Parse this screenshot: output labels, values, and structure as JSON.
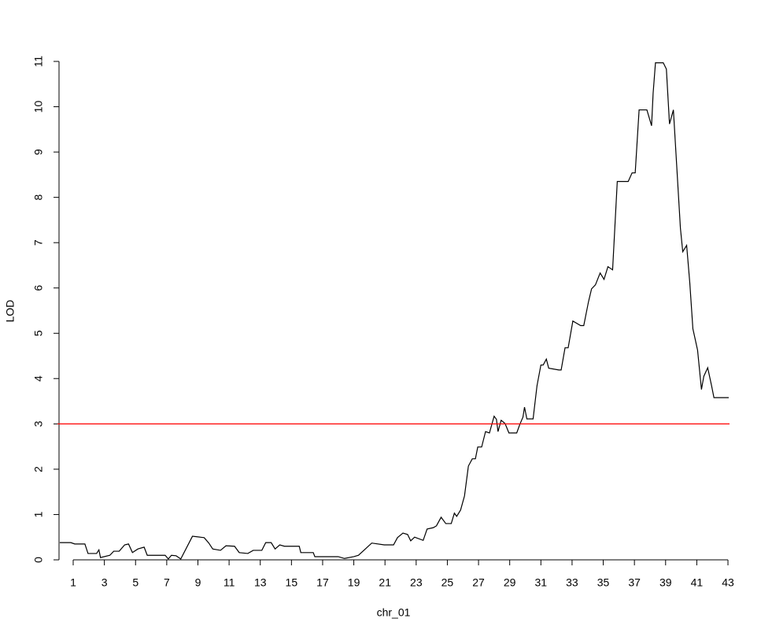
{
  "chart_data": {
    "type": "line",
    "x_label": "chr_01",
    "y_label": "LOD",
    "color": "#000000",
    "threshold": 3,
    "threshold_color": "#ff0000",
    "xlim": [
      0,
      43.1
    ],
    "ylim": [
      0,
      11
    ],
    "xticks": [
      1,
      3,
      5,
      7,
      9,
      11,
      13,
      15,
      17,
      19,
      21,
      23,
      25,
      27,
      29,
      31,
      33,
      35,
      37,
      39,
      41,
      43
    ],
    "yticks": [
      0,
      1,
      2,
      3,
      4,
      5,
      6,
      7,
      8,
      9,
      10,
      11
    ],
    "x": [
      0.14,
      0.85,
      1.1,
      1.75,
      1.95,
      2.5,
      2.65,
      2.75,
      3.35,
      3.6,
      3.95,
      4.3,
      4.55,
      4.8,
      5.15,
      5.55,
      5.75,
      6.4,
      6.9,
      7.1,
      7.3,
      7.6,
      7.9,
      8.65,
      9.4,
      9.7,
      9.95,
      10.45,
      10.8,
      11.35,
      11.65,
      12.2,
      12.55,
      13.1,
      13.35,
      13.7,
      13.95,
      14.25,
      14.55,
      15.5,
      15.6,
      16.4,
      16.5,
      18,
      18.4,
      19,
      19.3,
      20.15,
      20.95,
      21.55,
      21.8,
      22.15,
      22.45,
      22.65,
      22.9,
      23.45,
      23.7,
      24.1,
      24.3,
      24.6,
      24.9,
      25.25,
      25.45,
      25.6,
      25.85,
      26.1,
      26.35,
      26.6,
      26.8,
      26.95,
      27.2,
      27.45,
      27.7,
      28,
      28.15,
      28.25,
      28.45,
      28.7,
      28.95,
      29.45,
      29.65,
      29.85,
      29.95,
      30.1,
      30.5,
      30.75,
      31,
      31.15,
      31.35,
      31.5,
      32.15,
      32.3,
      32.55,
      32.75,
      33.05,
      33.55,
      33.75,
      34.05,
      34.25,
      34.5,
      34.8,
      35.05,
      35.3,
      35.6,
      35.9,
      36.6,
      36.85,
      37.05,
      37.3,
      37.8,
      38.1,
      38.2,
      38.35,
      38.85,
      39.05,
      39.25,
      39.5,
      39.95,
      40.1,
      40.35,
      40.55,
      40.75,
      41.05,
      41.3,
      41.45,
      41.7,
      41.95,
      42.1,
      43.05
    ],
    "values": [
      0.38,
      0.38,
      0.35,
      0.35,
      0.14,
      0.14,
      0.22,
      0.05,
      0.1,
      0.19,
      0.19,
      0.33,
      0.35,
      0.16,
      0.24,
      0.28,
      0.1,
      0.1,
      0.1,
      0.02,
      0.1,
      0.09,
      0.02,
      0.52,
      0.49,
      0.37,
      0.24,
      0.21,
      0.31,
      0.3,
      0.16,
      0.14,
      0.21,
      0.21,
      0.38,
      0.38,
      0.24,
      0.33,
      0.3,
      0.3,
      0.16,
      0.16,
      0.07,
      0.07,
      0.03,
      0.07,
      0.1,
      0.37,
      0.33,
      0.33,
      0.49,
      0.59,
      0.56,
      0.42,
      0.5,
      0.43,
      0.68,
      0.71,
      0.75,
      0.94,
      0.8,
      0.8,
      1.03,
      0.96,
      1.1,
      1.41,
      2.07,
      2.23,
      2.23,
      2.49,
      2.49,
      2.83,
      2.8,
      3.17,
      3.1,
      2.83,
      3.08,
      3.01,
      2.8,
      2.8,
      2.99,
      3.15,
      3.37,
      3.11,
      3.11,
      3.84,
      4.3,
      4.3,
      4.43,
      4.23,
      4.19,
      4.19,
      4.68,
      4.68,
      5.27,
      5.17,
      5.17,
      5.69,
      5.98,
      6.07,
      6.33,
      6.19,
      6.47,
      6.4,
      8.35,
      8.35,
      8.54,
      8.54,
      9.93,
      9.93,
      9.58,
      10.3,
      10.97,
      10.97,
      10.83,
      9.62,
      9.93,
      7.32,
      6.8,
      6.94,
      6.12,
      5.1,
      4.63,
      3.76,
      4.05,
      4.24,
      3.84,
      3.58,
      3.58
    ]
  }
}
